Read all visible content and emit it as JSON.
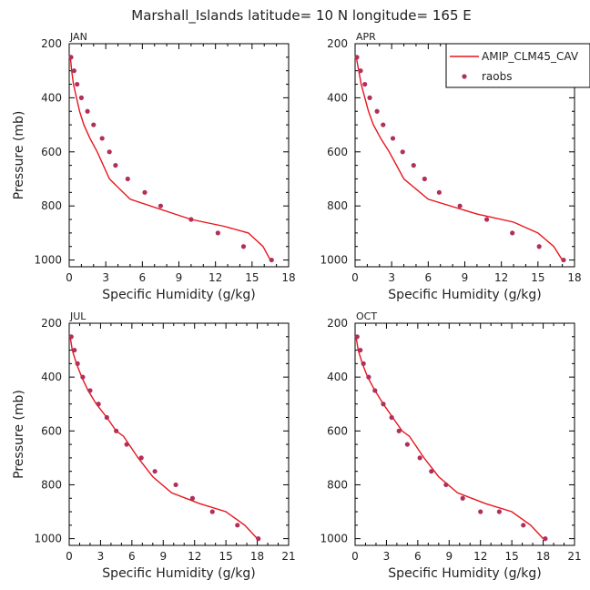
{
  "title": "Marshall_Islands  latitude= 10 N longitude= 165 E",
  "legend": {
    "model_label": "AMIP_CLM45_CAV",
    "obs_label": "raobs",
    "model_color": "#e8141c",
    "obs_color": "#b0305a"
  },
  "chart_data": [
    {
      "type": "line",
      "panel_label": "JAN",
      "xlabel": "Specific Humidity (g/kg)",
      "ylabel": "Pressure (mb)",
      "xlim": [
        0,
        18
      ],
      "ylim": [
        200,
        1025
      ],
      "y_inverted": true,
      "xticks": [
        0,
        3,
        6,
        9,
        12,
        15,
        18
      ],
      "yticks": [
        200,
        400,
        600,
        800,
        1000
      ],
      "series": [
        {
          "name": "AMIP_CLM45_CAV",
          "style": "line",
          "x": [
            0.1,
            0.2,
            0.35,
            0.6,
            0.85,
            1.2,
            1.7,
            2.3,
            3.3,
            5.0,
            10.0,
            12.7,
            14.7,
            15.9,
            16.5
          ],
          "y": [
            250,
            300,
            350,
            400,
            450,
            500,
            550,
            600,
            700,
            775,
            850,
            875,
            900,
            950,
            1000
          ]
        },
        {
          "name": "raobs",
          "style": "markers",
          "x": [
            0.15,
            0.4,
            0.65,
            1.0,
            1.5,
            2.0,
            2.7,
            3.3,
            3.8,
            4.8,
            6.2,
            7.5,
            10.0,
            12.2,
            14.3,
            16.6
          ],
          "y": [
            250,
            300,
            350,
            400,
            450,
            500,
            550,
            600,
            650,
            700,
            750,
            800,
            850,
            900,
            950,
            1000
          ]
        }
      ]
    },
    {
      "type": "line",
      "panel_label": "APR",
      "xlabel": "Specific Humidity (g/kg)",
      "ylabel": "",
      "xlim": [
        0,
        18
      ],
      "ylim": [
        200,
        1025
      ],
      "y_inverted": true,
      "xticks": [
        0,
        3,
        6,
        9,
        12,
        15,
        18
      ],
      "yticks": [
        200,
        400,
        600,
        800,
        1000
      ],
      "series": [
        {
          "name": "AMIP_CLM45_CAV",
          "style": "line",
          "x": [
            0.1,
            0.3,
            0.5,
            0.8,
            1.1,
            1.5,
            2.1,
            2.8,
            4.0,
            6.0,
            10.0,
            13.0,
            15.0,
            16.3,
            17.0
          ],
          "y": [
            250,
            300,
            350,
            400,
            450,
            500,
            550,
            600,
            700,
            775,
            830,
            860,
            900,
            950,
            1000
          ]
        },
        {
          "name": "raobs",
          "style": "markers",
          "x": [
            0.15,
            0.45,
            0.8,
            1.2,
            1.8,
            2.3,
            3.1,
            3.9,
            4.8,
            5.7,
            6.9,
            8.6,
            10.8,
            12.9,
            15.1,
            17.1
          ],
          "y": [
            250,
            300,
            350,
            400,
            450,
            500,
            550,
            600,
            650,
            700,
            750,
            800,
            850,
            900,
            950,
            1000
          ]
        }
      ]
    },
    {
      "type": "line",
      "panel_label": "JUL",
      "xlabel": "Specific Humidity (g/kg)",
      "ylabel": "Pressure (mb)",
      "xlim": [
        0,
        21
      ],
      "ylim": [
        200,
        1025
      ],
      "y_inverted": true,
      "xticks": [
        0,
        3,
        6,
        9,
        12,
        15,
        18,
        21
      ],
      "yticks": [
        200,
        400,
        600,
        800,
        1000
      ],
      "series": [
        {
          "name": "AMIP_CLM45_CAV",
          "style": "line",
          "x": [
            0.1,
            0.3,
            0.7,
            1.2,
            1.8,
            2.6,
            3.6,
            4.5,
            5.2,
            6.6,
            8.0,
            9.8,
            12.5,
            15.0,
            16.8,
            18.0
          ],
          "y": [
            250,
            300,
            350,
            400,
            450,
            500,
            550,
            600,
            620,
            700,
            770,
            830,
            870,
            900,
            950,
            1000
          ]
        },
        {
          "name": "raobs",
          "style": "markers",
          "x": [
            0.2,
            0.5,
            0.8,
            1.3,
            2.0,
            2.8,
            3.6,
            4.5,
            5.5,
            6.9,
            8.2,
            10.2,
            11.8,
            13.7,
            16.1,
            18.1
          ],
          "y": [
            250,
            300,
            350,
            400,
            450,
            500,
            550,
            600,
            650,
            700,
            750,
            800,
            850,
            900,
            950,
            1000
          ]
        }
      ]
    },
    {
      "type": "line",
      "panel_label": "OCT",
      "xlabel": "Specific Humidity (g/kg)",
      "ylabel": "",
      "xlim": [
        0,
        21
      ],
      "ylim": [
        200,
        1025
      ],
      "y_inverted": true,
      "xticks": [
        0,
        3,
        6,
        9,
        12,
        15,
        18,
        21
      ],
      "yticks": [
        200,
        400,
        600,
        800,
        1000
      ],
      "series": [
        {
          "name": "AMIP_CLM45_CAV",
          "style": "line",
          "x": [
            0.1,
            0.3,
            0.7,
            1.2,
            1.9,
            2.7,
            3.6,
            4.5,
            5.2,
            6.6,
            8.0,
            9.8,
            12.5,
            15.0,
            16.8,
            18.0
          ],
          "y": [
            250,
            300,
            350,
            400,
            450,
            500,
            550,
            600,
            620,
            700,
            770,
            830,
            870,
            900,
            950,
            1000
          ]
        },
        {
          "name": "raobs",
          "style": "markers",
          "x": [
            0.2,
            0.5,
            0.8,
            1.3,
            1.9,
            2.7,
            3.5,
            4.2,
            5.0,
            6.2,
            7.3,
            8.7,
            10.3,
            12.0,
            13.8,
            16.1,
            18.2
          ],
          "y": [
            250,
            300,
            350,
            400,
            450,
            500,
            550,
            600,
            650,
            700,
            750,
            800,
            850,
            900,
            900,
            950,
            1000
          ]
        }
      ]
    }
  ]
}
